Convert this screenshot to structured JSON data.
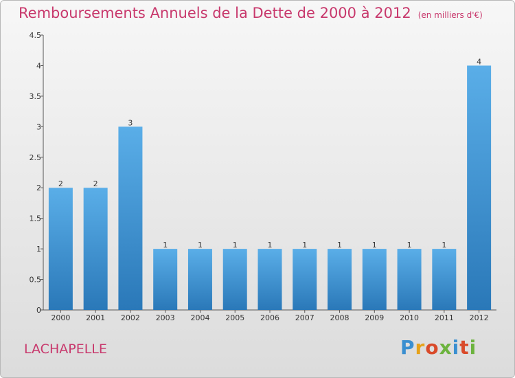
{
  "header": {
    "title": "Remboursements Annuels de la Dette de 2000 à 2012",
    "unit": "(en milliers d'€)"
  },
  "footer": {
    "place": "LACHAPELLE",
    "logo": "Proxiti"
  },
  "colors": {
    "title": "#c8386c",
    "bar_top": "#5aaee8",
    "bar_bottom": "#2a78b8",
    "logo": [
      "#3a8fd0",
      "#e6a21a",
      "#d94a2a",
      "#6cb33e",
      "#3a8fd0",
      "#d94a2a",
      "#6cb33e"
    ]
  },
  "chart_data": {
    "type": "bar",
    "categories": [
      "2000",
      "2001",
      "2002",
      "2003",
      "2004",
      "2005",
      "2006",
      "2007",
      "2008",
      "2009",
      "2010",
      "2011",
      "2012"
    ],
    "values": [
      2,
      2,
      3,
      1,
      1,
      1,
      1,
      1,
      1,
      1,
      1,
      1,
      4
    ],
    "data_labels": [
      "2",
      "2",
      "3",
      "1",
      "1",
      "1",
      "1",
      "1",
      "1",
      "1",
      "1",
      "1",
      "4"
    ],
    "yticks": [
      "0",
      "0.5",
      "1",
      "1.5",
      "2",
      "2.5",
      "3",
      "3.5",
      "4",
      "4.5"
    ],
    "ylim": [
      0,
      4.5
    ],
    "grid": false,
    "legend": "none"
  }
}
